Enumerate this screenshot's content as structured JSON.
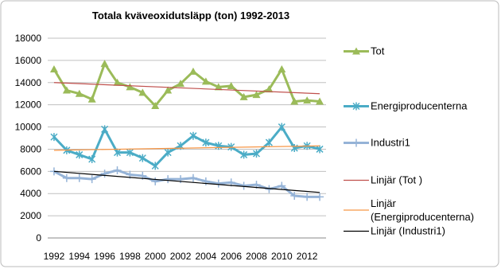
{
  "chart_data": {
    "type": "line",
    "title": "Totala kväveoxidutsläpp (ton) 1992-2013",
    "categories": [
      "1992",
      null,
      "1994",
      null,
      "1996",
      null,
      "1998",
      null,
      "2000",
      null,
      "2002",
      null,
      "2004",
      null,
      "2006",
      null,
      "2008",
      null,
      "2010",
      null,
      "2012",
      null
    ],
    "series": [
      {
        "name": "Tot",
        "color": "#9bbb59",
        "marker": "triangle",
        "values": [
          15200,
          13300,
          13000,
          12500,
          15700,
          14000,
          13600,
          13100,
          11900,
          13300,
          13900,
          15000,
          14100,
          13600,
          13700,
          12700,
          12900,
          13400,
          15200,
          12300,
          12400,
          12300
        ]
      },
      {
        "name": "Energiproducenterna",
        "color": "#4bacc6",
        "marker": "x",
        "values": [
          9100,
          7900,
          7500,
          7100,
          9800,
          7700,
          7700,
          7200,
          6500,
          7700,
          8300,
          9200,
          8600,
          8300,
          8200,
          7500,
          7600,
          8600,
          10000,
          8100,
          8300,
          8000
        ]
      },
      {
        "name": "Industri1",
        "color": "#95b3d7",
        "marker": "plus",
        "values": [
          6000,
          5400,
          5400,
          5300,
          5800,
          6100,
          5700,
          5600,
          5100,
          5300,
          5300,
          5400,
          5100,
          4900,
          5000,
          4700,
          4800,
          4400,
          4700,
          3800,
          3700,
          3700
        ]
      }
    ],
    "trendlines": [
      {
        "name": "Linjär (Tot )",
        "color": "#c0504d",
        "values": [
          14000,
          13000
        ]
      },
      {
        "name": "Linjär (Energiproducenterna)",
        "color": "#f79646",
        "values": [
          7900,
          8300
        ]
      },
      {
        "name": "Linjär (Industri1)",
        "color": "#000000",
        "values": [
          6000,
          4100
        ]
      }
    ],
    "ylim": [
      0,
      18000
    ],
    "yticks": [
      0,
      2000,
      4000,
      6000,
      8000,
      10000,
      12000,
      14000,
      16000,
      18000
    ],
    "grid": true
  }
}
